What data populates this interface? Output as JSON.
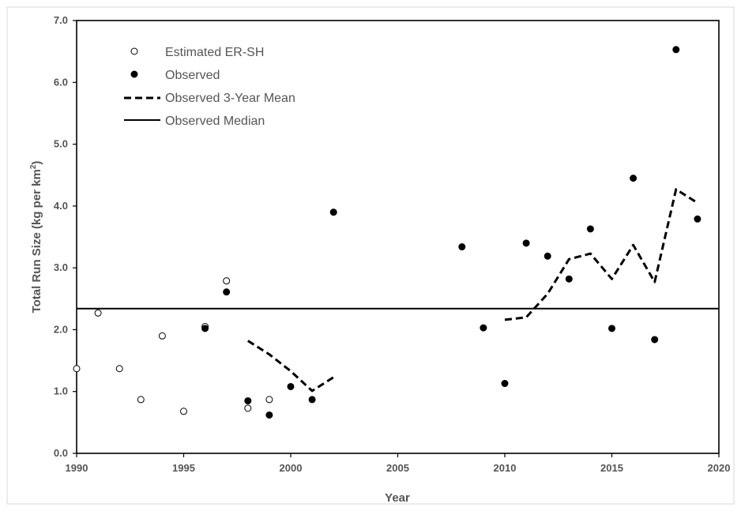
{
  "chart_data": {
    "type": "scatter",
    "title": "",
    "xlabel": "Year",
    "ylabel": "Total Run Size (kg per km²)",
    "ylabel_main": "Total Run Size (kg per km",
    "ylabel_sup": "2",
    "ylabel_end": ")",
    "xlim": [
      1990,
      2020
    ],
    "ylim": [
      0.0,
      7.0
    ],
    "x_ticks": [
      "1990",
      "1995",
      "2000",
      "2005",
      "2010",
      "2015",
      "2020"
    ],
    "y_ticks": [
      "0.0",
      "1.0",
      "2.0",
      "3.0",
      "4.0",
      "5.0",
      "6.0",
      "7.0"
    ],
    "grid": false,
    "legend_position": "top-left",
    "series": [
      {
        "name": "Estimated ER-SH",
        "marker": "open-circle",
        "color": "#000000",
        "points": [
          {
            "x": 1990,
            "y": 1.37
          },
          {
            "x": 1991,
            "y": 2.27
          },
          {
            "x": 1992,
            "y": 1.37
          },
          {
            "x": 1993,
            "y": 0.87
          },
          {
            "x": 1994,
            "y": 1.9
          },
          {
            "x": 1995,
            "y": 0.68
          },
          {
            "x": 1996,
            "y": 2.05
          },
          {
            "x": 1997,
            "y": 2.79
          },
          {
            "x": 1998,
            "y": 0.73
          },
          {
            "x": 1999,
            "y": 0.87
          }
        ]
      },
      {
        "name": "Observed",
        "marker": "filled-circle",
        "color": "#000000",
        "points": [
          {
            "x": 1996,
            "y": 2.02
          },
          {
            "x": 1997,
            "y": 2.61
          },
          {
            "x": 1998,
            "y": 0.85
          },
          {
            "x": 1999,
            "y": 0.62
          },
          {
            "x": 2000,
            "y": 1.08
          },
          {
            "x": 2001,
            "y": 0.87
          },
          {
            "x": 2002,
            "y": 3.9
          },
          {
            "x": 2008,
            "y": 3.34
          },
          {
            "x": 2009,
            "y": 2.03
          },
          {
            "x": 2010,
            "y": 1.13
          },
          {
            "x": 2011,
            "y": 3.4
          },
          {
            "x": 2012,
            "y": 3.19
          },
          {
            "x": 2013,
            "y": 2.82
          },
          {
            "x": 2014,
            "y": 3.63
          },
          {
            "x": 2015,
            "y": 2.02
          },
          {
            "x": 2016,
            "y": 4.45
          },
          {
            "x": 2017,
            "y": 1.84
          },
          {
            "x": 2018,
            "y": 6.53
          },
          {
            "x": 2019,
            "y": 3.79
          }
        ]
      },
      {
        "name": "Observed 3-Year Mean",
        "marker": "dashed-line",
        "color": "#000000",
        "segments": [
          [
            {
              "x": 1998,
              "y": 1.82
            },
            {
              "x": 1999,
              "y": 1.6
            },
            {
              "x": 2000,
              "y": 1.33
            },
            {
              "x": 2001,
              "y": 1.01
            },
            {
              "x": 2002,
              "y": 1.23
            }
          ],
          [
            {
              "x": 2010,
              "y": 2.16
            },
            {
              "x": 2011,
              "y": 2.2
            },
            {
              "x": 2012,
              "y": 2.58
            },
            {
              "x": 2013,
              "y": 3.14
            },
            {
              "x": 2014,
              "y": 3.23
            },
            {
              "x": 2015,
              "y": 2.82
            },
            {
              "x": 2016,
              "y": 3.37
            },
            {
              "x": 2017,
              "y": 2.77
            },
            {
              "x": 2018,
              "y": 4.27
            },
            {
              "x": 2019,
              "y": 4.05
            }
          ]
        ]
      },
      {
        "name": "Observed Median",
        "marker": "solid-line",
        "color": "#000000",
        "value": 2.34
      }
    ]
  }
}
